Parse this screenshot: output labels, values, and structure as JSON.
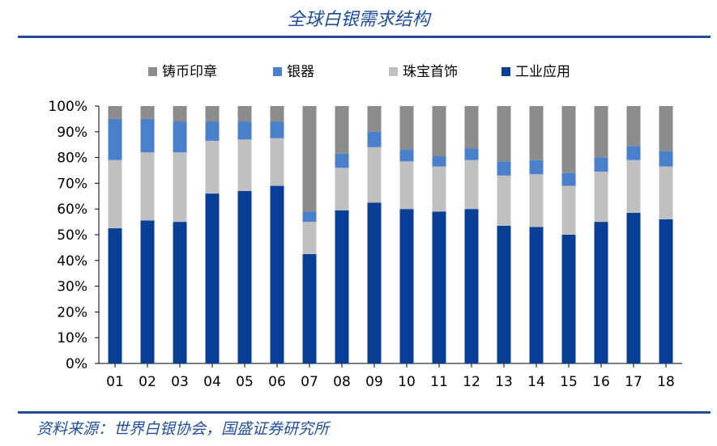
{
  "title": "全球白银需求结构",
  "source": "资料来源：世界白银协会，国盛证券研究所",
  "chart_data": {
    "type": "bar",
    "stacked": true,
    "categories": [
      "01",
      "02",
      "03",
      "04",
      "05",
      "06",
      "07",
      "08",
      "09",
      "10",
      "11",
      "12",
      "13",
      "14",
      "15",
      "16",
      "17",
      "18"
    ],
    "ylim": [
      0,
      100
    ],
    "yticks": [
      "0%",
      "10%",
      "20%",
      "30%",
      "40%",
      "50%",
      "60%",
      "70%",
      "80%",
      "90%",
      "100%"
    ],
    "legend_position": "top",
    "series": [
      {
        "name": "工业应用",
        "color": "#0a3f98",
        "values": [
          52.5,
          55.5,
          55,
          66,
          67,
          69,
          42.5,
          59.5,
          62.5,
          60,
          59,
          60,
          53.5,
          53,
          50,
          55,
          58.5,
          56
        ]
      },
      {
        "name": "珠宝首饰",
        "color": "#c0c0c0",
        "values": [
          26.5,
          26.5,
          27,
          20.5,
          20,
          18.5,
          12.5,
          16.5,
          21.5,
          18.5,
          17.5,
          19,
          19.5,
          20.5,
          19,
          19.5,
          20.5,
          20.5
        ]
      },
      {
        "name": "银器",
        "color": "#4a7fcc",
        "values": [
          16,
          13,
          12,
          7.5,
          7,
          6.5,
          4,
          5.5,
          6,
          4.5,
          4,
          4.5,
          5.5,
          5.5,
          5,
          5.5,
          5.5,
          6
        ]
      },
      {
        "name": "铸币印章",
        "color": "#8c8c8c",
        "values": [
          5,
          5,
          6,
          6,
          6,
          6,
          41,
          18.5,
          10,
          17,
          19.5,
          16.5,
          21.5,
          21,
          26,
          20,
          15.5,
          17.5
        ]
      }
    ],
    "legend_order": [
      "铸币印章",
      "银器",
      "珠宝首饰",
      "工业应用"
    ]
  }
}
